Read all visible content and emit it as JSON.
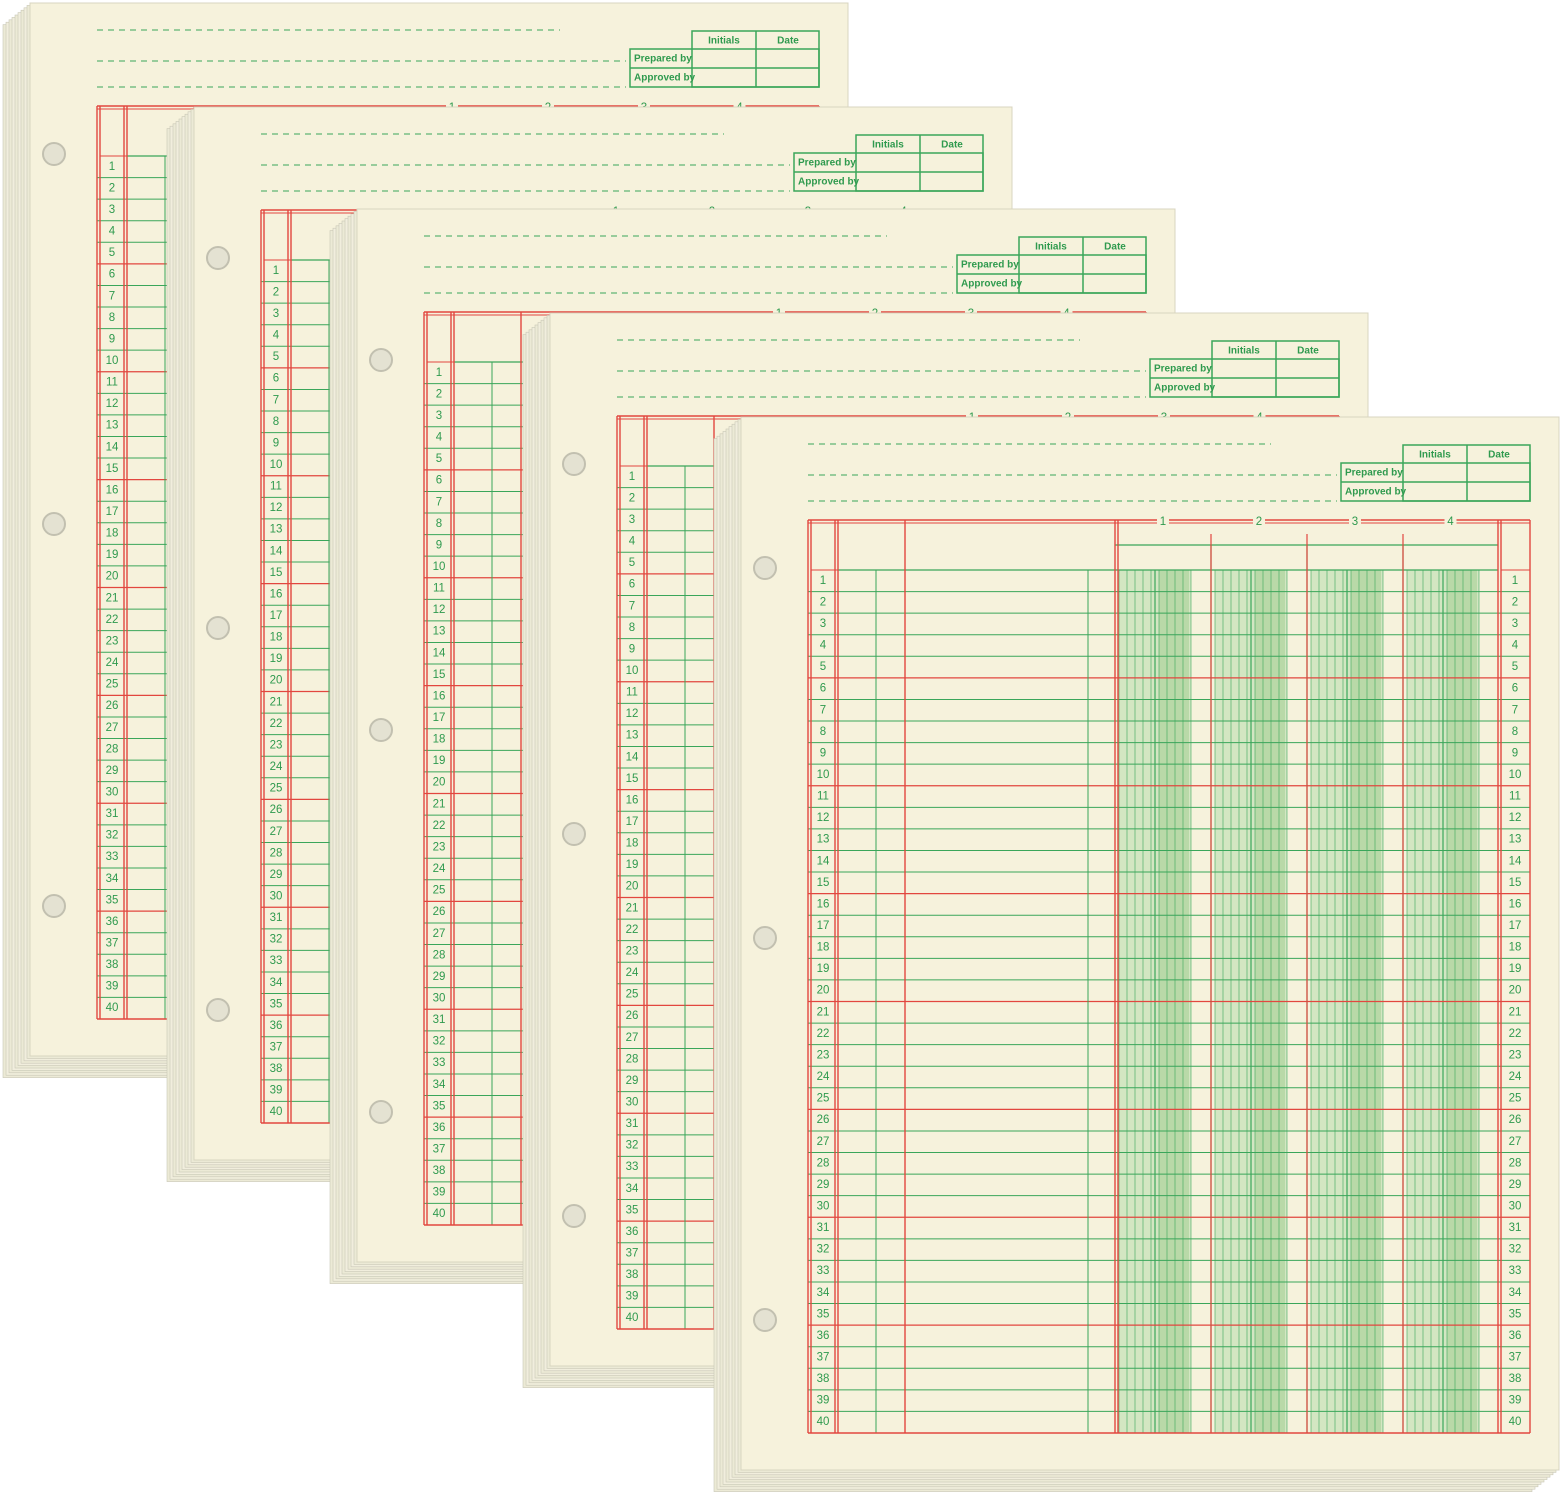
{
  "sheet": {
    "header": {
      "initials": "Initials",
      "date": "Date",
      "prepared_by": "Prepared by",
      "approved_by": "Approved by"
    },
    "column_numbers": [
      1,
      2,
      3,
      4
    ],
    "row_numbers": [
      1,
      2,
      3,
      4,
      5,
      6,
      7,
      8,
      9,
      10,
      11,
      12,
      13,
      14,
      15,
      16,
      17,
      18,
      19,
      20,
      21,
      22,
      23,
      24,
      25,
      26,
      27,
      28,
      29,
      30,
      31,
      32,
      33,
      34,
      35,
      36,
      37,
      38,
      39,
      40
    ]
  }
}
